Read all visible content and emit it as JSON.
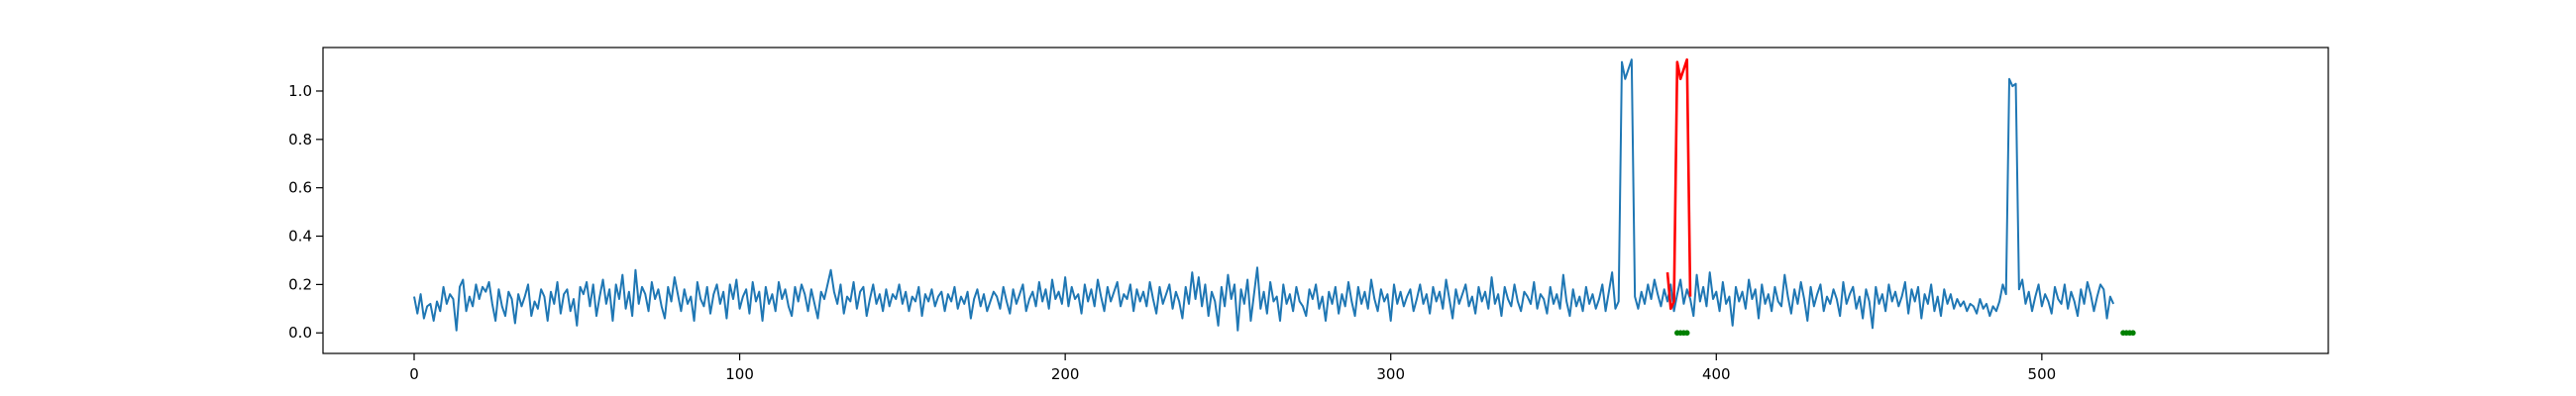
{
  "chart_data": {
    "type": "line",
    "title": "",
    "xlabel": "",
    "ylabel": "",
    "xlim": [
      -28,
      588
    ],
    "ylim": [
      -0.085,
      1.18
    ],
    "grid": false,
    "legend": "none",
    "x_ticks": [
      0,
      100,
      200,
      300,
      400,
      500
    ],
    "y_ticks": [
      0.0,
      0.2,
      0.4,
      0.6,
      0.8,
      1.0
    ],
    "x_tick_labels": [
      "0",
      "100",
      "200",
      "300",
      "400",
      "500"
    ],
    "y_tick_labels": [
      "0.0",
      "0.2",
      "0.4",
      "0.6",
      "0.8",
      "1.0"
    ],
    "series": [
      {
        "role": "signal",
        "color": "#1f77b4",
        "x_start": 0,
        "values": [
          0.15,
          0.08,
          0.16,
          0.06,
          0.11,
          0.12,
          0.05,
          0.13,
          0.09,
          0.19,
          0.12,
          0.16,
          0.14,
          0.01,
          0.19,
          0.22,
          0.09,
          0.15,
          0.11,
          0.2,
          0.14,
          0.19,
          0.17,
          0.21,
          0.12,
          0.05,
          0.18,
          0.11,
          0.07,
          0.17,
          0.14,
          0.04,
          0.16,
          0.11,
          0.15,
          0.2,
          0.07,
          0.13,
          0.1,
          0.18,
          0.15,
          0.05,
          0.17,
          0.12,
          0.21,
          0.08,
          0.16,
          0.18,
          0.09,
          0.14,
          0.03,
          0.19,
          0.16,
          0.21,
          0.11,
          0.2,
          0.07,
          0.15,
          0.22,
          0.12,
          0.18,
          0.05,
          0.2,
          0.14,
          0.24,
          0.1,
          0.17,
          0.07,
          0.26,
          0.12,
          0.19,
          0.16,
          0.09,
          0.21,
          0.14,
          0.18,
          0.11,
          0.06,
          0.19,
          0.13,
          0.23,
          0.16,
          0.09,
          0.18,
          0.12,
          0.15,
          0.05,
          0.21,
          0.14,
          0.11,
          0.19,
          0.08,
          0.16,
          0.2,
          0.12,
          0.17,
          0.06,
          0.2,
          0.14,
          0.22,
          0.1,
          0.15,
          0.18,
          0.08,
          0.21,
          0.13,
          0.17,
          0.05,
          0.19,
          0.12,
          0.16,
          0.09,
          0.21,
          0.14,
          0.18,
          0.11,
          0.07,
          0.19,
          0.13,
          0.2,
          0.16,
          0.09,
          0.18,
          0.12,
          0.06,
          0.17,
          0.14,
          0.2,
          0.26,
          0.17,
          0.12,
          0.2,
          0.08,
          0.15,
          0.13,
          0.21,
          0.1,
          0.17,
          0.19,
          0.07,
          0.14,
          0.2,
          0.12,
          0.16,
          0.09,
          0.18,
          0.11,
          0.16,
          0.14,
          0.2,
          0.12,
          0.17,
          0.09,
          0.15,
          0.13,
          0.19,
          0.07,
          0.16,
          0.13,
          0.18,
          0.11,
          0.15,
          0.17,
          0.09,
          0.16,
          0.13,
          0.19,
          0.1,
          0.15,
          0.12,
          0.17,
          0.06,
          0.14,
          0.18,
          0.11,
          0.16,
          0.09,
          0.13,
          0.17,
          0.15,
          0.1,
          0.19,
          0.13,
          0.08,
          0.18,
          0.12,
          0.16,
          0.2,
          0.09,
          0.14,
          0.17,
          0.11,
          0.21,
          0.13,
          0.18,
          0.1,
          0.22,
          0.14,
          0.17,
          0.12,
          0.23,
          0.11,
          0.19,
          0.14,
          0.16,
          0.08,
          0.2,
          0.13,
          0.18,
          0.11,
          0.22,
          0.15,
          0.09,
          0.19,
          0.13,
          0.17,
          0.21,
          0.11,
          0.16,
          0.14,
          0.2,
          0.09,
          0.18,
          0.13,
          0.17,
          0.11,
          0.21,
          0.14,
          0.08,
          0.19,
          0.12,
          0.16,
          0.2,
          0.1,
          0.17,
          0.13,
          0.06,
          0.19,
          0.12,
          0.25,
          0.14,
          0.23,
          0.11,
          0.2,
          0.07,
          0.17,
          0.13,
          0.03,
          0.19,
          0.11,
          0.24,
          0.14,
          0.2,
          0.01,
          0.18,
          0.12,
          0.22,
          0.05,
          0.16,
          0.27,
          0.1,
          0.17,
          0.08,
          0.21,
          0.13,
          0.15,
          0.05,
          0.2,
          0.12,
          0.16,
          0.09,
          0.19,
          0.13,
          0.11,
          0.07,
          0.18,
          0.14,
          0.2,
          0.1,
          0.15,
          0.05,
          0.17,
          0.12,
          0.19,
          0.08,
          0.16,
          0.11,
          0.21,
          0.13,
          0.07,
          0.19,
          0.12,
          0.17,
          0.1,
          0.22,
          0.14,
          0.09,
          0.18,
          0.13,
          0.16,
          0.05,
          0.2,
          0.12,
          0.17,
          0.11,
          0.15,
          0.18,
          0.09,
          0.14,
          0.2,
          0.12,
          0.16,
          0.08,
          0.19,
          0.13,
          0.17,
          0.1,
          0.22,
          0.14,
          0.06,
          0.18,
          0.12,
          0.16,
          0.2,
          0.11,
          0.15,
          0.08,
          0.19,
          0.13,
          0.17,
          0.1,
          0.23,
          0.12,
          0.16,
          0.07,
          0.19,
          0.14,
          0.11,
          0.2,
          0.13,
          0.09,
          0.17,
          0.15,
          0.12,
          0.21,
          0.1,
          0.16,
          0.14,
          0.08,
          0.19,
          0.12,
          0.16,
          0.1,
          0.24,
          0.13,
          0.07,
          0.18,
          0.11,
          0.15,
          0.09,
          0.19,
          0.12,
          0.16,
          0.1,
          0.14,
          0.2,
          0.09,
          0.17,
          0.25,
          0.1,
          0.13,
          1.12,
          1.05,
          1.09,
          1.13,
          0.15,
          0.1,
          0.17,
          0.12,
          0.2,
          0.14,
          0.22,
          0.16,
          0.11,
          0.18,
          0.13,
          0.2,
          0.09,
          0.16,
          0.22,
          0.12,
          0.18,
          0.14,
          0.07,
          0.24,
          0.13,
          0.19,
          0.11,
          0.25,
          0.14,
          0.17,
          0.09,
          0.21,
          0.12,
          0.15,
          0.03,
          0.19,
          0.13,
          0.17,
          0.1,
          0.22,
          0.14,
          0.18,
          0.06,
          0.2,
          0.12,
          0.16,
          0.09,
          0.19,
          0.13,
          0.11,
          0.24,
          0.15,
          0.08,
          0.18,
          0.12,
          0.21,
          0.14,
          0.05,
          0.19,
          0.11,
          0.16,
          0.2,
          0.09,
          0.15,
          0.12,
          0.18,
          0.14,
          0.07,
          0.21,
          0.12,
          0.16,
          0.19,
          0.1,
          0.15,
          0.06,
          0.18,
          0.13,
          0.02,
          0.19,
          0.12,
          0.16,
          0.09,
          0.2,
          0.13,
          0.17,
          0.11,
          0.15,
          0.21,
          0.08,
          0.18,
          0.13,
          0.19,
          0.06,
          0.16,
          0.12,
          0.2,
          0.09,
          0.15,
          0.07,
          0.18,
          0.12,
          0.16,
          0.1,
          0.14,
          0.11,
          0.13,
          0.09,
          0.12,
          0.11,
          0.08,
          0.14,
          0.1,
          0.12,
          0.07,
          0.11,
          0.09,
          0.13,
          0.2,
          0.16,
          1.05,
          1.02,
          1.03,
          0.18,
          0.22,
          0.12,
          0.17,
          0.09,
          0.15,
          0.2,
          0.11,
          0.16,
          0.13,
          0.08,
          0.19,
          0.14,
          0.12,
          0.2,
          0.1,
          0.17,
          0.13,
          0.07,
          0.18,
          0.12,
          0.21,
          0.16,
          0.09,
          0.15,
          0.2,
          0.18,
          0.06,
          0.15,
          0.12
        ]
      },
      {
        "role": "anomaly",
        "color": "#ff0000",
        "x_start": 385,
        "values": [
          0.25,
          0.1,
          0.13,
          1.12,
          1.05,
          1.09,
          1.13,
          0.15
        ]
      }
    ],
    "markers": {
      "color": "#008000",
      "x": [
        388,
        389,
        390,
        391,
        525,
        526,
        527,
        528
      ],
      "y": [
        0,
        0,
        0,
        0,
        0,
        0,
        0,
        0
      ]
    }
  }
}
